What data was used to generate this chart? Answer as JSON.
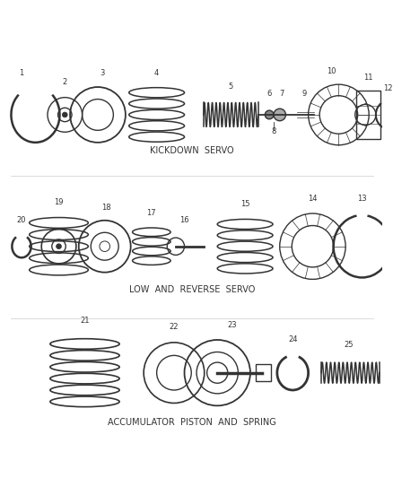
{
  "background_color": "#ffffff",
  "line_color": "#333333",
  "section1_label": "KICKDOWN  SERVO",
  "section2_label": "LOW  AND  REVERSE  SERVO",
  "section3_label": "ACCUMULATOR  PISTON  AND  SPRING",
  "figsize": [
    4.38,
    5.33
  ],
  "dpi": 100
}
